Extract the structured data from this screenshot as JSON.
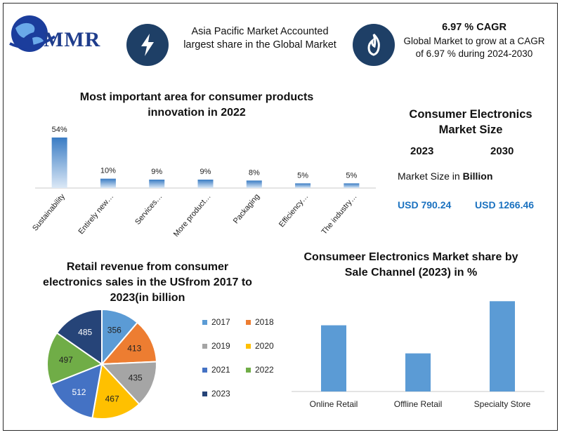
{
  "brand": {
    "name": "MMR"
  },
  "header": {
    "box1_text": "Asia Pacific Market Accounted largest share in the Global Market",
    "cagr_title": "6.97 % CAGR",
    "cagr_text": "Global Market to grow at a CAGR of 6.97 % during 2024-2030"
  },
  "market_size": {
    "title": "Consumer Electronics Market Size",
    "year_a": "2023",
    "year_b": "2030",
    "label_prefix": "Market Size in",
    "label_bold": "Billion",
    "value_a": "USD 790.24",
    "value_b": "USD 1266.46"
  },
  "chart_data": [
    {
      "type": "bar",
      "title": "Most important area for consumer products innovation in 2022",
      "categories": [
        "Sustainability",
        "Entirely new…",
        "Services…",
        "More product…",
        "Packaging",
        "Efficiency…",
        "The industry…"
      ],
      "values": [
        54,
        10,
        9,
        9,
        8,
        5,
        5
      ],
      "data_labels": [
        "54%",
        "10%",
        "9%",
        "9%",
        "8%",
        "5%",
        "5%"
      ],
      "ylim": [
        0,
        60
      ],
      "grid": false,
      "color": "#3a7cc4"
    },
    {
      "type": "pie",
      "title": "Retail revenue from consumer electronics sales in the USfrom 2017 to 2023(in billion",
      "categories": [
        "2017",
        "2018",
        "2019",
        "2020",
        "2021",
        "2022",
        "2023"
      ],
      "values": [
        356,
        413,
        435,
        467,
        512,
        497,
        485
      ],
      "colors": [
        "#5b9bd5",
        "#ed7d31",
        "#a5a5a5",
        "#ffc000",
        "#4472c4",
        "#70ad47",
        "#264478"
      ],
      "legend": "right"
    },
    {
      "type": "bar",
      "title": "Consumeer Electronics Market share by Sale Channel (2023) in %",
      "categories": [
        "Online Retail",
        "Offline Retail",
        "Specialty Store"
      ],
      "values": [
        33,
        19,
        45
      ],
      "ylim": [
        0,
        50
      ],
      "grid": false,
      "color": "#5b9bd5"
    }
  ]
}
